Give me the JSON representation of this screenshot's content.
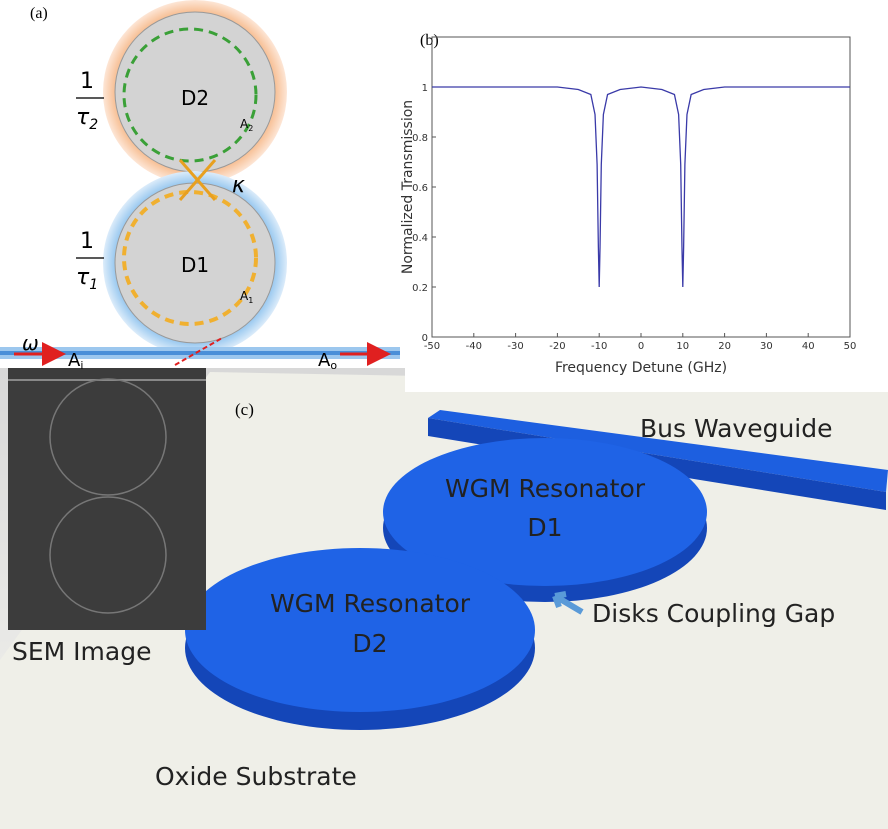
{
  "panel_a": {
    "label": "(a)",
    "rate_top": {
      "num": "1",
      "den": "τ",
      "sub": "2"
    },
    "disk_top": "D2",
    "amp_top": {
      "base": "A",
      "sub": "2"
    },
    "coupling": "κ",
    "rate_bottom": {
      "num": "1",
      "den": "τ",
      "sub": "1"
    },
    "disk_bottom": "D1",
    "amp_bottom": {
      "base": "A",
      "sub": "1"
    },
    "frequency": "ω",
    "amp_in": {
      "base": "A",
      "sub": "i"
    },
    "amp_out": {
      "base": "A",
      "sub": "o"
    }
  },
  "chart_data": {
    "type": "line",
    "label": "(b)",
    "ylabel": "Normalized Transmission",
    "xlabel": "Frequency Detune (GHz)",
    "color": "#3a3aa8",
    "x": [
      -50,
      -40,
      -30,
      -20,
      -15,
      -12,
      -11,
      -10.5,
      -10.2,
      -10,
      -9.8,
      -9.5,
      -9,
      -8,
      -5,
      0,
      5,
      8,
      9,
      9.5,
      9.8,
      10,
      10.2,
      10.5,
      11,
      12,
      15,
      20,
      30,
      40,
      50
    ],
    "values": [
      1,
      1,
      1,
      1,
      0.99,
      0.97,
      0.89,
      0.69,
      0.36,
      0.2,
      0.36,
      0.69,
      0.89,
      0.97,
      0.99,
      1,
      0.99,
      0.97,
      0.89,
      0.69,
      0.36,
      0.2,
      0.36,
      0.69,
      0.89,
      0.97,
      0.99,
      1,
      1,
      1,
      1
    ],
    "xlim": [
      -50,
      50
    ],
    "xticks": [
      -50,
      -40,
      -30,
      -20,
      -10,
      0,
      10,
      20,
      30,
      40,
      50
    ],
    "ylim": [
      0,
      1.2
    ],
    "yticks": [
      0,
      0.2,
      0.4,
      0.6,
      0.8,
      1
    ]
  },
  "panel_c": {
    "label": "(c)",
    "bus": "Bus Waveguide",
    "d1_line1": "WGM Resonator",
    "d1_line2": "D1",
    "d2_line1": "WGM Resonator",
    "d2_line2": "D2",
    "gap": "Disks Coupling Gap",
    "sem": "SEM Image",
    "substrate": "Oxide Substrate"
  }
}
